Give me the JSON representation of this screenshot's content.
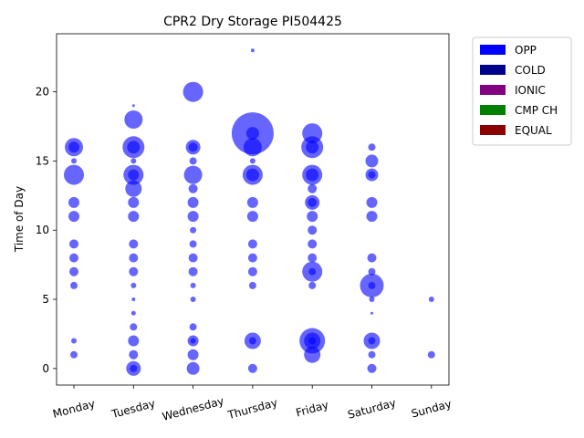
{
  "chart_data": {
    "type": "scatter",
    "title": "CPR2 Dry Storage PI504425",
    "xlabel": "",
    "ylabel": "Time of Day",
    "categories": [
      "Monday",
      "Tuesday",
      "Wednesday",
      "Thursday",
      "Friday",
      "Saturday",
      "Sunday"
    ],
    "ylim": [
      -1.2,
      24.2
    ],
    "yticks": [
      0,
      5,
      10,
      15,
      20
    ],
    "legend": {
      "placement": "outside-top-right",
      "entries": [
        {
          "label": "OPP",
          "color": "#0000ff"
        },
        {
          "label": "COLD",
          "color": "#00008b"
        },
        {
          "label": "IONIC",
          "color": "#800080"
        },
        {
          "label": "CMP CH",
          "color": "#008000"
        },
        {
          "label": "EQUAL",
          "color": "#8b0000"
        }
      ]
    },
    "point_color": "#0000ff",
    "points": [
      {
        "day": 0,
        "hour": 1,
        "size": 4
      },
      {
        "day": 0,
        "hour": 2,
        "size": 3
      },
      {
        "day": 0,
        "hour": 6,
        "size": 4
      },
      {
        "day": 0,
        "hour": 7,
        "size": 5
      },
      {
        "day": 0,
        "hour": 8,
        "size": 5
      },
      {
        "day": 0,
        "hour": 9,
        "size": 5
      },
      {
        "day": 0,
        "hour": 11,
        "size": 6
      },
      {
        "day": 0,
        "hour": 12,
        "size": 6
      },
      {
        "day": 0,
        "hour": 14,
        "size": 11
      },
      {
        "day": 0,
        "hour": 15,
        "size": 3
      },
      {
        "day": 0,
        "hour": 16,
        "size": 10
      },
      {
        "day": 0,
        "hour": 16,
        "size": 6
      },
      {
        "day": 1,
        "hour": 0,
        "size": 8
      },
      {
        "day": 1,
        "hour": 0,
        "size": 4
      },
      {
        "day": 1,
        "hour": 1,
        "size": 5
      },
      {
        "day": 1,
        "hour": 2,
        "size": 6
      },
      {
        "day": 1,
        "hour": 3,
        "size": 4
      },
      {
        "day": 1,
        "hour": 4,
        "size": 2.5
      },
      {
        "day": 1,
        "hour": 5,
        "size": 2
      },
      {
        "day": 1,
        "hour": 6,
        "size": 3
      },
      {
        "day": 1,
        "hour": 7,
        "size": 5
      },
      {
        "day": 1,
        "hour": 8,
        "size": 5
      },
      {
        "day": 1,
        "hour": 9,
        "size": 5
      },
      {
        "day": 1,
        "hour": 11,
        "size": 6
      },
      {
        "day": 1,
        "hour": 12,
        "size": 6
      },
      {
        "day": 1,
        "hour": 13,
        "size": 9
      },
      {
        "day": 1,
        "hour": 14,
        "size": 11
      },
      {
        "day": 1,
        "hour": 14,
        "size": 6
      },
      {
        "day": 1,
        "hour": 15,
        "size": 3
      },
      {
        "day": 1,
        "hour": 16,
        "size": 12
      },
      {
        "day": 1,
        "hour": 16,
        "size": 7
      },
      {
        "day": 1,
        "hour": 18,
        "size": 10
      },
      {
        "day": 1,
        "hour": 19,
        "size": 1.5
      },
      {
        "day": 2,
        "hour": 0,
        "size": 7
      },
      {
        "day": 2,
        "hour": 1,
        "size": 6
      },
      {
        "day": 2,
        "hour": 2,
        "size": 6
      },
      {
        "day": 2,
        "hour": 2,
        "size": 3
      },
      {
        "day": 2,
        "hour": 3,
        "size": 4
      },
      {
        "day": 2,
        "hour": 5,
        "size": 3
      },
      {
        "day": 2,
        "hour": 6,
        "size": 3
      },
      {
        "day": 2,
        "hour": 7,
        "size": 5
      },
      {
        "day": 2,
        "hour": 8,
        "size": 5
      },
      {
        "day": 2,
        "hour": 9,
        "size": 4
      },
      {
        "day": 2,
        "hour": 10,
        "size": 3.5
      },
      {
        "day": 2,
        "hour": 11,
        "size": 6
      },
      {
        "day": 2,
        "hour": 12,
        "size": 6
      },
      {
        "day": 2,
        "hour": 13,
        "size": 5
      },
      {
        "day": 2,
        "hour": 14,
        "size": 10
      },
      {
        "day": 2,
        "hour": 15,
        "size": 4
      },
      {
        "day": 2,
        "hour": 16,
        "size": 8
      },
      {
        "day": 2,
        "hour": 16,
        "size": 5
      },
      {
        "day": 2,
        "hour": 20,
        "size": 11
      },
      {
        "day": 3,
        "hour": 0,
        "size": 5
      },
      {
        "day": 3,
        "hour": 2,
        "size": 9
      },
      {
        "day": 3,
        "hour": 2,
        "size": 4
      },
      {
        "day": 3,
        "hour": 6,
        "size": 4
      },
      {
        "day": 3,
        "hour": 7,
        "size": 5
      },
      {
        "day": 3,
        "hour": 8,
        "size": 5
      },
      {
        "day": 3,
        "hour": 9,
        "size": 5
      },
      {
        "day": 3,
        "hour": 11,
        "size": 6
      },
      {
        "day": 3,
        "hour": 12,
        "size": 6
      },
      {
        "day": 3,
        "hour": 14,
        "size": 11
      },
      {
        "day": 3,
        "hour": 14,
        "size": 7
      },
      {
        "day": 3,
        "hour": 15,
        "size": 3
      },
      {
        "day": 3,
        "hour": 16,
        "size": 10
      },
      {
        "day": 3,
        "hour": 17,
        "size": 23
      },
      {
        "day": 3,
        "hour": 17,
        "size": 7
      },
      {
        "day": 3,
        "hour": 23,
        "size": 2
      },
      {
        "day": 4,
        "hour": 1,
        "size": 9
      },
      {
        "day": 4,
        "hour": 2,
        "size": 14
      },
      {
        "day": 4,
        "hour": 2,
        "size": 9
      },
      {
        "day": 4,
        "hour": 2,
        "size": 4
      },
      {
        "day": 4,
        "hour": 6,
        "size": 4
      },
      {
        "day": 4,
        "hour": 7,
        "size": 11
      },
      {
        "day": 4,
        "hour": 7,
        "size": 4
      },
      {
        "day": 4,
        "hour": 8,
        "size": 5
      },
      {
        "day": 4,
        "hour": 9,
        "size": 5
      },
      {
        "day": 4,
        "hour": 10,
        "size": 5
      },
      {
        "day": 4,
        "hour": 11,
        "size": 6
      },
      {
        "day": 4,
        "hour": 12,
        "size": 8
      },
      {
        "day": 4,
        "hour": 12,
        "size": 5
      },
      {
        "day": 4,
        "hour": 13,
        "size": 5
      },
      {
        "day": 4,
        "hour": 14,
        "size": 11
      },
      {
        "day": 4,
        "hour": 14,
        "size": 7
      },
      {
        "day": 4,
        "hour": 16,
        "size": 12
      },
      {
        "day": 4,
        "hour": 16,
        "size": 7
      },
      {
        "day": 4,
        "hour": 17,
        "size": 11
      },
      {
        "day": 5,
        "hour": 0,
        "size": 5
      },
      {
        "day": 5,
        "hour": 1,
        "size": 4
      },
      {
        "day": 5,
        "hour": 2,
        "size": 9
      },
      {
        "day": 5,
        "hour": 2,
        "size": 4
      },
      {
        "day": 5,
        "hour": 4,
        "size": 1.5
      },
      {
        "day": 5,
        "hour": 5,
        "size": 3
      },
      {
        "day": 5,
        "hour": 6,
        "size": 13
      },
      {
        "day": 5,
        "hour": 6,
        "size": 4
      },
      {
        "day": 5,
        "hour": 7,
        "size": 4
      },
      {
        "day": 5,
        "hour": 8,
        "size": 5
      },
      {
        "day": 5,
        "hour": 11,
        "size": 6
      },
      {
        "day": 5,
        "hour": 12,
        "size": 6
      },
      {
        "day": 5,
        "hour": 14,
        "size": 7
      },
      {
        "day": 5,
        "hour": 14,
        "size": 4
      },
      {
        "day": 5,
        "hour": 15,
        "size": 7
      },
      {
        "day": 5,
        "hour": 16,
        "size": 4
      },
      {
        "day": 6,
        "hour": 1,
        "size": 4
      },
      {
        "day": 6,
        "hour": 5,
        "size": 3
      }
    ]
  }
}
